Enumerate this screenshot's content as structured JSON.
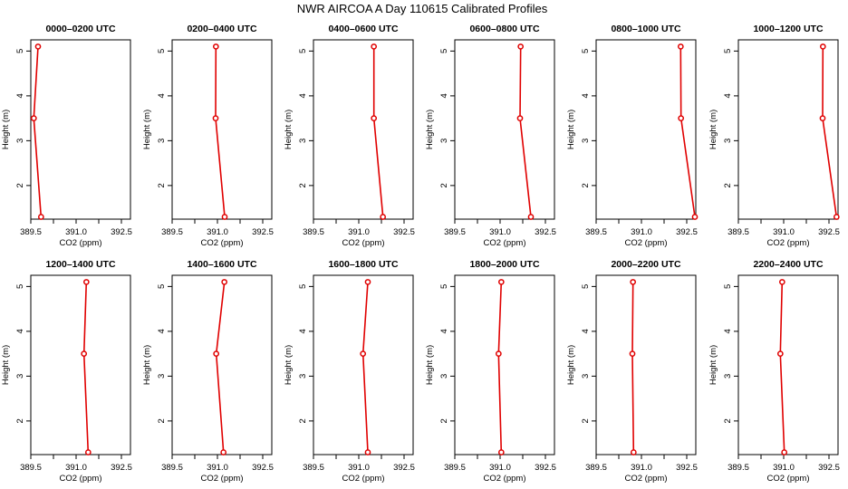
{
  "figure": {
    "title": "NWR AIRCOA A  Day 110615  Calibrated Profiles"
  },
  "chart_data": [
    {
      "type": "line",
      "title": "0000–0200 UTC",
      "xlabel": "CO2 (ppm)",
      "ylabel": "Height (m)",
      "xlim": [
        389.5,
        392.8
      ],
      "ylim": [
        1.25,
        5.25
      ],
      "x_ticks": [
        "389.5",
        "391.0",
        "392.5"
      ],
      "x_minor_ticks": [
        390.25,
        391.75
      ],
      "y_ticks": [
        "2",
        "3",
        "4",
        "5"
      ],
      "series": [
        {
          "color": "#e00000",
          "points": [
            {
              "x": 389.74,
              "y": 5.1
            },
            {
              "x": 389.6,
              "y": 3.5
            },
            {
              "x": 389.84,
              "y": 1.3
            }
          ]
        }
      ]
    },
    {
      "type": "line",
      "title": "0200–0400 UTC",
      "xlabel": "CO2 (ppm)",
      "ylabel": "Height (m)",
      "xlim": [
        389.5,
        392.8
      ],
      "ylim": [
        1.25,
        5.25
      ],
      "x_ticks": [
        "389.5",
        "391.0",
        "392.5"
      ],
      "x_minor_ticks": [
        390.25,
        391.75
      ],
      "y_ticks": [
        "2",
        "3",
        "4",
        "5"
      ],
      "series": [
        {
          "color": "#e00000",
          "points": [
            {
              "x": 390.95,
              "y": 5.1
            },
            {
              "x": 390.94,
              "y": 3.5
            },
            {
              "x": 391.24,
              "y": 1.3
            }
          ]
        }
      ]
    },
    {
      "type": "line",
      "title": "0400–0600 UTC",
      "xlabel": "CO2 (ppm)",
      "ylabel": "Height (m)",
      "xlim": [
        389.5,
        392.8
      ],
      "ylim": [
        1.25,
        5.25
      ],
      "x_ticks": [
        "389.5",
        "391.0",
        "392.5"
      ],
      "x_minor_ticks": [
        390.25,
        391.75
      ],
      "y_ticks": [
        "2",
        "3",
        "4",
        "5"
      ],
      "series": [
        {
          "color": "#e00000",
          "points": [
            {
              "x": 391.5,
              "y": 5.1
            },
            {
              "x": 391.5,
              "y": 3.5
            },
            {
              "x": 391.8,
              "y": 1.3
            }
          ]
        }
      ]
    },
    {
      "type": "line",
      "title": "0600–0800 UTC",
      "xlabel": "CO2 (ppm)",
      "ylabel": "Height (m)",
      "xlim": [
        389.5,
        392.8
      ],
      "ylim": [
        1.25,
        5.25
      ],
      "x_ticks": [
        "389.5",
        "391.0",
        "392.5"
      ],
      "x_minor_ticks": [
        390.25,
        391.75
      ],
      "y_ticks": [
        "2",
        "3",
        "4",
        "5"
      ],
      "series": [
        {
          "color": "#e00000",
          "points": [
            {
              "x": 391.68,
              "y": 5.1
            },
            {
              "x": 391.66,
              "y": 3.5
            },
            {
              "x": 392.02,
              "y": 1.3
            }
          ]
        }
      ]
    },
    {
      "type": "line",
      "title": "0800–1000 UTC",
      "xlabel": "CO2 (ppm)",
      "ylabel": "Height (m)",
      "xlim": [
        389.5,
        392.8
      ],
      "ylim": [
        1.25,
        5.25
      ],
      "x_ticks": [
        "389.5",
        "391.0",
        "392.5"
      ],
      "x_minor_ticks": [
        390.25,
        391.75
      ],
      "y_ticks": [
        "2",
        "3",
        "4",
        "5"
      ],
      "series": [
        {
          "color": "#e00000",
          "points": [
            {
              "x": 392.3,
              "y": 5.1
            },
            {
              "x": 392.31,
              "y": 3.5
            },
            {
              "x": 392.77,
              "y": 1.3
            }
          ]
        }
      ]
    },
    {
      "type": "line",
      "title": "1000–1200 UTC",
      "xlabel": "CO2 (ppm)",
      "ylabel": "Height (m)",
      "xlim": [
        389.5,
        392.8
      ],
      "ylim": [
        1.25,
        5.25
      ],
      "x_ticks": [
        "389.5",
        "391.0",
        "392.5"
      ],
      "x_minor_ticks": [
        390.25,
        391.75
      ],
      "y_ticks": [
        "2",
        "3",
        "4",
        "5"
      ],
      "series": [
        {
          "color": "#e00000",
          "points": [
            {
              "x": 392.3,
              "y": 5.1
            },
            {
              "x": 392.29,
              "y": 3.5
            },
            {
              "x": 392.75,
              "y": 1.3
            }
          ]
        }
      ]
    },
    {
      "type": "line",
      "title": "1200–1400 UTC",
      "xlabel": "CO2 (ppm)",
      "ylabel": "Height (m)",
      "xlim": [
        389.5,
        392.8
      ],
      "ylim": [
        1.25,
        5.25
      ],
      "x_ticks": [
        "389.5",
        "391.0",
        "392.5"
      ],
      "x_minor_ticks": [
        390.25,
        391.75
      ],
      "y_ticks": [
        "2",
        "3",
        "4",
        "5"
      ],
      "series": [
        {
          "color": "#e00000",
          "points": [
            {
              "x": 391.34,
              "y": 5.1
            },
            {
              "x": 391.26,
              "y": 3.5
            },
            {
              "x": 391.4,
              "y": 1.3
            }
          ]
        }
      ]
    },
    {
      "type": "line",
      "title": "1400–1600 UTC",
      "xlabel": "CO2 (ppm)",
      "ylabel": "Height (m)",
      "xlim": [
        389.5,
        392.8
      ],
      "ylim": [
        1.25,
        5.25
      ],
      "x_ticks": [
        "389.5",
        "391.0",
        "392.5"
      ],
      "x_minor_ticks": [
        390.25,
        391.75
      ],
      "y_ticks": [
        "2",
        "3",
        "4",
        "5"
      ],
      "series": [
        {
          "color": "#e00000",
          "points": [
            {
              "x": 391.23,
              "y": 5.1
            },
            {
              "x": 390.96,
              "y": 3.5
            },
            {
              "x": 391.2,
              "y": 1.3
            }
          ]
        }
      ]
    },
    {
      "type": "line",
      "title": "1600–1800 UTC",
      "xlabel": "CO2 (ppm)",
      "ylabel": "Height (m)",
      "xlim": [
        389.5,
        392.8
      ],
      "ylim": [
        1.25,
        5.25
      ],
      "x_ticks": [
        "389.5",
        "391.0",
        "392.5"
      ],
      "x_minor_ticks": [
        390.25,
        391.75
      ],
      "y_ticks": [
        "2",
        "3",
        "4",
        "5"
      ],
      "series": [
        {
          "color": "#e00000",
          "points": [
            {
              "x": 391.3,
              "y": 5.1
            },
            {
              "x": 391.14,
              "y": 3.5
            },
            {
              "x": 391.3,
              "y": 1.3
            }
          ]
        }
      ]
    },
    {
      "type": "line",
      "title": "1800–2000 UTC",
      "xlabel": "CO2 (ppm)",
      "ylabel": "Height (m)",
      "xlim": [
        389.5,
        392.8
      ],
      "ylim": [
        1.25,
        5.25
      ],
      "x_ticks": [
        "389.5",
        "391.0",
        "392.5"
      ],
      "x_minor_ticks": [
        390.25,
        391.75
      ],
      "y_ticks": [
        "2",
        "3",
        "4",
        "5"
      ],
      "series": [
        {
          "color": "#e00000",
          "points": [
            {
              "x": 391.04,
              "y": 5.1
            },
            {
              "x": 390.95,
              "y": 3.5
            },
            {
              "x": 391.04,
              "y": 1.3
            }
          ]
        }
      ]
    },
    {
      "type": "line",
      "title": "2000–2200 UTC",
      "xlabel": "CO2 (ppm)",
      "ylabel": "Height (m)",
      "xlim": [
        389.5,
        392.8
      ],
      "ylim": [
        1.25,
        5.25
      ],
      "x_ticks": [
        "389.5",
        "391.0",
        "392.5"
      ],
      "x_minor_ticks": [
        390.25,
        391.75
      ],
      "y_ticks": [
        "2",
        "3",
        "4",
        "5"
      ],
      "series": [
        {
          "color": "#e00000",
          "points": [
            {
              "x": 390.72,
              "y": 5.1
            },
            {
              "x": 390.7,
              "y": 3.5
            },
            {
              "x": 390.74,
              "y": 1.3
            }
          ]
        }
      ]
    },
    {
      "type": "line",
      "title": "2200–2400 UTC",
      "xlabel": "CO2 (ppm)",
      "ylabel": "Height (m)",
      "xlim": [
        389.5,
        392.8
      ],
      "ylim": [
        1.25,
        5.25
      ],
      "x_ticks": [
        "389.5",
        "391.0",
        "392.5"
      ],
      "x_minor_ticks": [
        390.25,
        391.75
      ],
      "y_ticks": [
        "2",
        "3",
        "4",
        "5"
      ],
      "series": [
        {
          "color": "#e00000",
          "points": [
            {
              "x": 390.95,
              "y": 5.1
            },
            {
              "x": 390.89,
              "y": 3.5
            },
            {
              "x": 391.02,
              "y": 1.3
            }
          ]
        }
      ]
    }
  ]
}
